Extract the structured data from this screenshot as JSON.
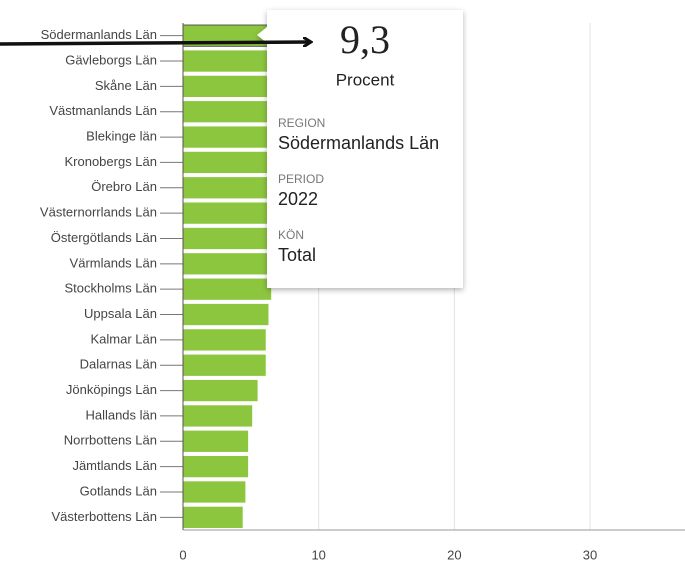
{
  "chart_data": {
    "type": "hbar",
    "categories": [
      "Södermanlands Län",
      "Gävleborgs Län",
      "Skåne Län",
      "Västmanlands Län",
      "Blekinge län",
      "Kronobergs Län",
      "Örebro Län",
      "Västernorrlands Län",
      "Östergötlands Län",
      "Värmlands Län",
      "Stockholms Län",
      "Uppsala Län",
      "Kalmar Län",
      "Dalarnas Län",
      "Jönköpings Län",
      "Hallands län",
      "Norrbottens Län",
      "Jämtlands Län",
      "Gotlands Län",
      "Västerbottens Län"
    ],
    "values": [
      9.3,
      8.6,
      8.2,
      7.9,
      7.6,
      7.4,
      7.2,
      7.0,
      6.9,
      6.7,
      6.5,
      6.3,
      6.1,
      6.1,
      5.5,
      5.1,
      4.8,
      4.8,
      4.6,
      4.4
    ],
    "color": "#8cc63f",
    "xlim": [
      0,
      37
    ],
    "xticks": [
      0,
      10,
      20,
      30
    ],
    "grid": true,
    "tooltip": {
      "label": "9,3",
      "unit": "Procent",
      "fields": [
        {
          "name": "REGION",
          "value": "Södermanlands Län"
        },
        {
          "name": "PERIOD",
          "value": "2022"
        },
        {
          "name": "KÖN",
          "value": "Total"
        }
      ]
    }
  }
}
